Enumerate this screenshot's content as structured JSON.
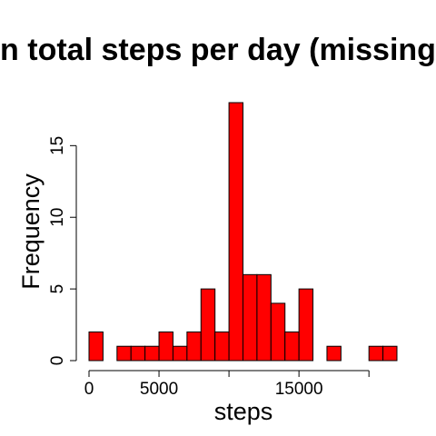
{
  "chart_data": {
    "type": "bar",
    "title": "n total steps per day (missing",
    "xlabel": "steps",
    "ylabel": "Frequency",
    "bar_color": "#ff0000",
    "bin_width": 1000,
    "x_range": [
      0,
      22000
    ],
    "xlim": [
      0,
      22000
    ],
    "ylim": [
      0,
      18
    ],
    "x_ticks": [
      0,
      5000,
      10000,
      15000,
      20000
    ],
    "x_tick_labels": [
      "0",
      "5000",
      "",
      "15000",
      ""
    ],
    "y_ticks": [
      0,
      5,
      10,
      15
    ],
    "y_tick_labels": [
      "0",
      "5",
      "10",
      "15"
    ],
    "values": [
      2,
      0,
      1,
      1,
      1,
      2,
      1,
      2,
      5,
      2,
      18,
      6,
      6,
      4,
      2,
      5,
      0,
      1,
      0,
      0,
      1,
      1
    ]
  }
}
